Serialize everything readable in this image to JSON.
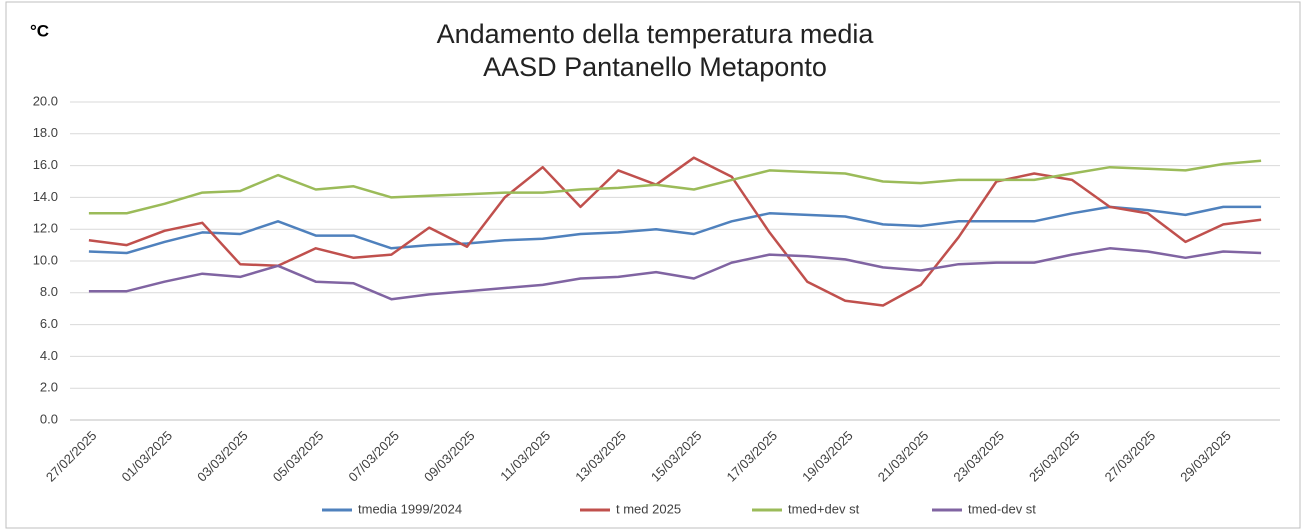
{
  "chart_data": {
    "type": "line",
    "title": [
      "Andamento della temperatura media",
      "AASD Pantanello Metaponto"
    ],
    "y_unit": "°C",
    "categories": [
      "27/02/2025",
      null,
      "01/03/2025",
      null,
      "03/03/2025",
      null,
      "05/03/2025",
      null,
      "07/03/2025",
      null,
      "09/03/2025",
      null,
      "11/03/2025",
      null,
      "13/03/2025",
      null,
      "15/03/2025",
      null,
      "17/03/2025",
      null,
      "19/03/2025",
      null,
      "21/03/2025",
      null,
      "23/03/2025",
      null,
      "25/03/2025",
      null,
      "27/03/2025",
      null,
      "29/03/2025",
      null
    ],
    "series": [
      {
        "name": "tmedia 1999/2024",
        "color": "#4f81bd",
        "values": [
          10.6,
          10.5,
          11.2,
          11.8,
          11.7,
          12.5,
          11.6,
          11.6,
          10.8,
          11.0,
          11.1,
          11.3,
          11.4,
          11.7,
          11.8,
          12.0,
          11.7,
          12.5,
          13.0,
          12.9,
          12.8,
          12.3,
          12.2,
          12.5,
          12.5,
          12.5,
          13.0,
          13.4,
          13.2,
          12.9,
          13.4,
          13.4
        ]
      },
      {
        "name": "t med 2025",
        "color": "#c0504d",
        "values": [
          11.3,
          11.0,
          11.9,
          12.4,
          9.8,
          9.7,
          10.8,
          10.2,
          10.4,
          12.1,
          10.9,
          14.0,
          15.9,
          13.4,
          15.7,
          14.8,
          16.5,
          15.3,
          11.8,
          8.7,
          7.5,
          7.2,
          8.5,
          11.5,
          15.0,
          15.5,
          15.1,
          13.4,
          13.0,
          11.2,
          12.3,
          12.6
        ]
      },
      {
        "name": "tmed+dev st",
        "color": "#9bbb59",
        "values": [
          13.0,
          13.0,
          13.6,
          14.3,
          14.4,
          15.4,
          14.5,
          14.7,
          14.0,
          14.1,
          14.2,
          14.3,
          14.3,
          14.5,
          14.6,
          14.8,
          14.5,
          15.1,
          15.7,
          15.6,
          15.5,
          15.0,
          14.9,
          15.1,
          15.1,
          15.1,
          15.5,
          15.9,
          15.8,
          15.7,
          16.1,
          16.3
        ]
      },
      {
        "name": "tmed-dev st",
        "color": "#8064a2",
        "values": [
          8.1,
          8.1,
          8.7,
          9.2,
          9.0,
          9.7,
          8.7,
          8.6,
          7.6,
          7.9,
          8.1,
          8.3,
          8.5,
          8.9,
          9.0,
          9.3,
          8.9,
          9.9,
          10.4,
          10.3,
          10.1,
          9.6,
          9.4,
          9.8,
          9.9,
          9.9,
          10.4,
          10.8,
          10.6,
          10.2,
          10.6,
          10.5
        ]
      }
    ],
    "ylim": [
      0,
      20
    ],
    "yticks": [
      {
        "value": 0,
        "label": "0.0"
      },
      {
        "value": 2,
        "label": "2.0"
      },
      {
        "value": 4,
        "label": "4.0"
      },
      {
        "value": 6,
        "label": "6.0"
      },
      {
        "value": 8,
        "label": "8.0"
      },
      {
        "value": 10,
        "label": "10.0"
      },
      {
        "value": 12,
        "label": "12.0"
      },
      {
        "value": 14,
        "label": "14.0"
      },
      {
        "value": 16,
        "label": "16.0"
      },
      {
        "value": 18,
        "label": "18.0"
      },
      {
        "value": 20,
        "label": "20.0"
      }
    ],
    "grid": true,
    "legend": "bottom"
  }
}
